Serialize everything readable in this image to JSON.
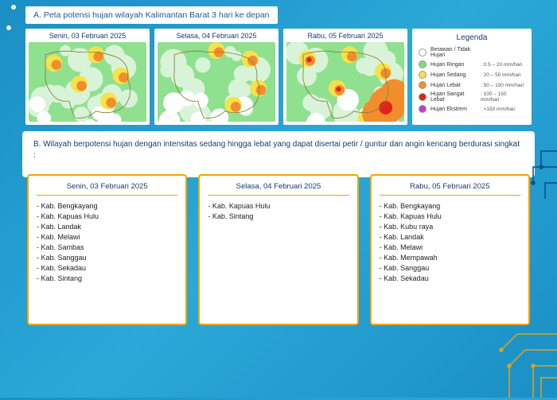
{
  "sectionA": {
    "title": "A. Peta potensi hujan wilayah Kalimantan Barat 3 hari ke depan",
    "maps": [
      {
        "title": "Senin, 03 Februari 2025"
      },
      {
        "title": "Selasa, 04 Februari 2025"
      },
      {
        "title": "Rabu, 05 Februari 2025"
      }
    ]
  },
  "legend": {
    "title": "Legenda",
    "items": [
      {
        "color": "#ffffff",
        "label": "Berawan / Tidak Hujan",
        "range": ""
      },
      {
        "color": "#7edc7e",
        "label": "Hujan Ringan",
        "range": ": 0.5 – 20 mm/hari"
      },
      {
        "color": "#f6e24a",
        "label": "Hujan Sedang",
        "range": ": 20 – 50 mm/hari"
      },
      {
        "color": "#f28d2e",
        "label": "Hujan Lebat",
        "range": ": 50 – 100 mm/hari"
      },
      {
        "color": "#e2231a",
        "label": "Hujan Sangat Lebat",
        "range": ": 100 – 150 mm/hari"
      },
      {
        "color": "#c43cc4",
        "label": "Hujan Ekstrem",
        "range": ": >150 mm/hari"
      }
    ]
  },
  "sectionB": {
    "title": "B. Wilayah berpotensi hujan dengan intensitas sedang hingga lebat yang dapat disertai petir / guntur dan angin kencang berdurasi singkat :",
    "days": [
      {
        "title": "Senin, 03 Februari 2025",
        "regions": [
          "Kab. Bengkayang",
          "Kab. Kapuas Hulu",
          "Kab. Landak",
          "Kab. Melawi",
          "Kab. Sambas",
          "Kab. Sanggau",
          "Kab. Sekadau",
          "Kab. Sintang"
        ]
      },
      {
        "title": "Selasa, 04 Februari 2025",
        "regions": [
          "Kab. Kapuas Hulu",
          "Kab. Sintang"
        ]
      },
      {
        "title": "Rabu, 05 Februari 2025",
        "regions": [
          "Kab. Bengkayang",
          "Kab. Kapuas Hulu",
          "Kab. Kubu raya",
          "Kab. Landak",
          "Kab. Melawi",
          "Kab. Mempawah",
          "Kab. Sanggau",
          "Kab. Sekadau"
        ]
      }
    ]
  },
  "mapStyle": {
    "base": "#8fe08f",
    "light": "#d8f3d8",
    "white": "#ffffff",
    "yellow": "#f6e24a",
    "orange": "#f28d2e",
    "red": "#e2231a",
    "outline": "#8a7a3a"
  }
}
